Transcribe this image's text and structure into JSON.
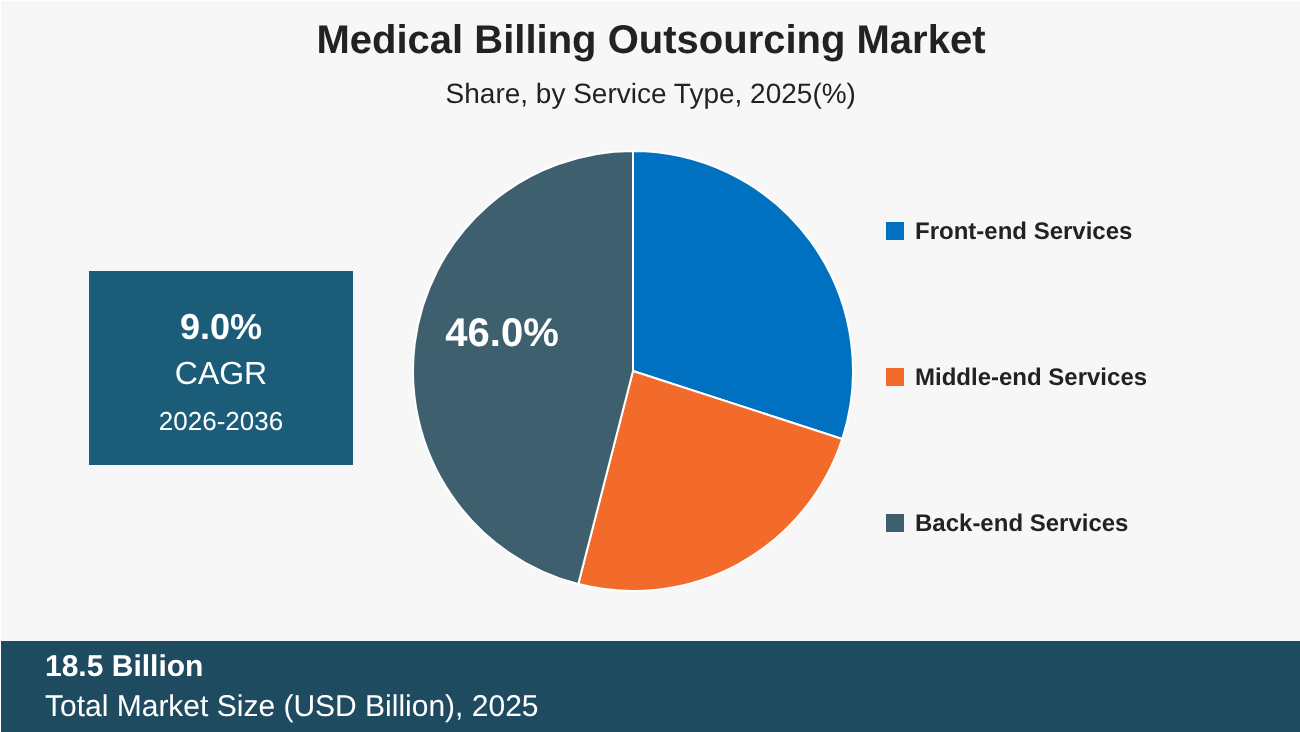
{
  "chart_data": {
    "type": "pie",
    "title": "Medical Billing Outsourcing Market",
    "subtitle": "Share, by Service Type, 2025(%)",
    "categories": [
      "Front-end Services",
      "Middle-end Services",
      "Back-end Services"
    ],
    "values": [
      30,
      24,
      46
    ],
    "colors": [
      "#0070c0",
      "#f26b2a",
      "#3d5f6e"
    ],
    "value_labels": [
      null,
      null,
      "46.0%"
    ],
    "legend": "right",
    "annotations": [
      "9.0%",
      "CAGR",
      "2026-2036",
      "18.5 Billion",
      "Total Market Size (USD Billion), 2025"
    ]
  }
}
